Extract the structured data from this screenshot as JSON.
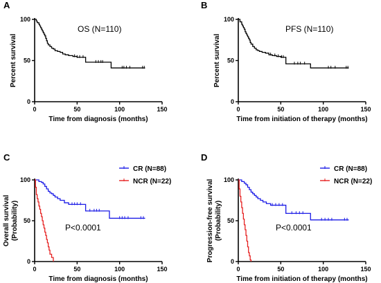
{
  "colors": {
    "black": "#000000",
    "cr": "#1a1ae6",
    "ncr": "#e62020"
  },
  "chart_data": [
    {
      "panel": "A",
      "type": "line",
      "xlabel": "Time from diagnosis (months)",
      "ylabel": "Percent survival",
      "annotation": "OS (N=110)",
      "xlim": [
        0,
        150
      ],
      "ylim": [
        0,
        100
      ],
      "xticks": [
        0,
        50,
        100,
        150
      ],
      "yticks": [
        0,
        50,
        100
      ],
      "legend": null,
      "series": [
        {
          "color": "#000000",
          "x": [
            0,
            2,
            3,
            5,
            6,
            7,
            8,
            9,
            10,
            11,
            12,
            13,
            14,
            15,
            16,
            18,
            20,
            22,
            24,
            27,
            30,
            33,
            36,
            40,
            45,
            50,
            58,
            60,
            88,
            90,
            130
          ],
          "y": [
            100,
            98,
            96,
            94,
            92,
            90,
            88,
            86,
            84,
            82,
            80,
            77,
            74,
            71,
            69,
            67,
            65,
            64,
            62,
            61,
            60,
            58,
            57,
            56,
            55,
            54,
            54,
            48,
            48,
            41,
            41
          ],
          "censor_x": [
            47,
            50,
            53,
            57,
            72,
            75,
            78,
            80,
            103,
            105,
            108,
            112,
            127,
            129
          ]
        }
      ]
    },
    {
      "panel": "B",
      "type": "line",
      "xlabel": "Time from initiation of therapy (months)",
      "ylabel": "Percent survival",
      "annotation": "PFS (N=110)",
      "xlim": [
        0,
        150
      ],
      "ylim": [
        0,
        100
      ],
      "xticks": [
        0,
        50,
        100,
        150
      ],
      "yticks": [
        0,
        50,
        100
      ],
      "legend": null,
      "series": [
        {
          "color": "#000000",
          "x": [
            0,
            2,
            4,
            5,
            6,
            7,
            8,
            9,
            10,
            11,
            12,
            13,
            14,
            15,
            17,
            19,
            21,
            23,
            25,
            28,
            32,
            36,
            40,
            45,
            50,
            55,
            56,
            60,
            85,
            130
          ],
          "y": [
            100,
            97,
            94,
            92,
            90,
            88,
            85,
            83,
            81,
            79,
            77,
            75,
            72,
            70,
            67,
            65,
            63,
            62,
            61,
            60,
            59,
            57,
            56,
            55,
            54,
            54,
            46,
            46,
            41,
            41
          ],
          "censor_x": [
            38,
            43,
            47,
            51,
            53,
            66,
            70,
            73,
            78,
            106,
            109,
            114,
            127,
            129
          ]
        }
      ]
    },
    {
      "panel": "C",
      "type": "line",
      "xlabel": "Time from diagnosis (months)",
      "ylabel": "Overall  survival\n(Probability)",
      "annotation": "P<0.0001",
      "xlim": [
        0,
        150
      ],
      "ylim": [
        0,
        100
      ],
      "xticks": [
        0,
        50,
        100,
        150
      ],
      "yticks": [
        0,
        50,
        100
      ],
      "legend": "top-right",
      "series": [
        {
          "name": "CR (N=88)",
          "color": "#1a1ae6",
          "x": [
            0,
            5,
            8,
            10,
            12,
            14,
            16,
            18,
            20,
            22,
            24,
            27,
            30,
            35,
            40,
            60,
            88,
            130
          ],
          "y": [
            100,
            98,
            97,
            95,
            92,
            89,
            86,
            84,
            83,
            81,
            79,
            77,
            75,
            72,
            70,
            62,
            53,
            53
          ],
          "censor_x": [
            44,
            47,
            50,
            54,
            65,
            70,
            73,
            76,
            100,
            103,
            106,
            110,
            125,
            128
          ]
        },
        {
          "name": "NCR (N=22)",
          "color": "#e62020",
          "x": [
            0,
            1,
            2,
            3,
            4,
            5,
            6,
            7,
            8,
            9,
            10,
            11,
            12,
            13,
            14,
            15,
            16,
            17,
            18,
            20,
            22
          ],
          "y": [
            100,
            91,
            82,
            77,
            73,
            68,
            64,
            59,
            55,
            50,
            45,
            41,
            36,
            32,
            27,
            23,
            18,
            14,
            9,
            5,
            0
          ],
          "censor_x": []
        }
      ]
    },
    {
      "panel": "D",
      "type": "line",
      "xlabel": "Time from initiation of therapy (months)",
      "ylabel": "Progression-free survival\n(Probability)",
      "annotation": "P<0.0001",
      "xlim": [
        0,
        150
      ],
      "ylim": [
        0,
        100
      ],
      "xticks": [
        0,
        50,
        100,
        150
      ],
      "yticks": [
        0,
        50,
        100
      ],
      "legend": "top-right",
      "series": [
        {
          "name": "CR (N=88)",
          "color": "#1a1ae6",
          "x": [
            0,
            4,
            7,
            9,
            11,
            13,
            15,
            17,
            19,
            21,
            23,
            26,
            29,
            33,
            38,
            55,
            56,
            85,
            130
          ],
          "y": [
            100,
            98,
            96,
            94,
            91,
            88,
            85,
            83,
            81,
            79,
            77,
            75,
            73,
            71,
            69,
            69,
            59,
            51,
            51
          ],
          "censor_x": [
            40,
            44,
            48,
            52,
            63,
            68,
            72,
            76,
            98,
            102,
            106,
            110,
            125,
            128
          ]
        },
        {
          "name": "NCR (N=22)",
          "color": "#e62020",
          "x": [
            0,
            1,
            2,
            3,
            4,
            5,
            6,
            7,
            8,
            9,
            10,
            11,
            12,
            13,
            14,
            15
          ],
          "y": [
            100,
            89,
            80,
            73,
            66,
            59,
            52,
            45,
            39,
            32,
            25,
            18,
            11,
            7,
            2,
            0
          ],
          "censor_x": []
        }
      ]
    }
  ]
}
